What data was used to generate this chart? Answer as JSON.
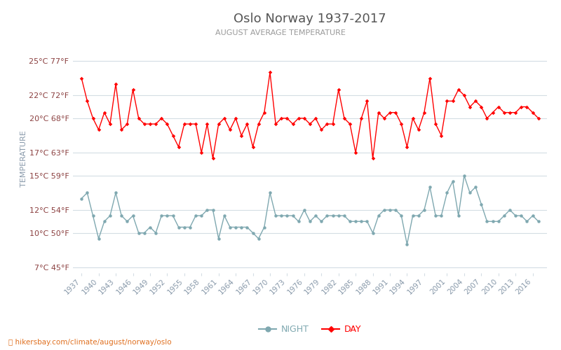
{
  "title": "Oslo Norway 1937-2017",
  "subtitle": "AUGUST AVERAGE TEMPERATURE",
  "ylabel": "TEMPERATURE",
  "xlabel_url": "ⓘ hikersbay.com/climate/august/norway/oslo",
  "legend_night": "NIGHT",
  "legend_day": "DAY",
  "years": [
    1937,
    1938,
    1939,
    1940,
    1941,
    1942,
    1943,
    1944,
    1945,
    1946,
    1947,
    1948,
    1949,
    1950,
    1951,
    1952,
    1953,
    1954,
    1955,
    1956,
    1957,
    1958,
    1959,
    1960,
    1961,
    1962,
    1963,
    1964,
    1965,
    1966,
    1967,
    1968,
    1969,
    1970,
    1971,
    1972,
    1973,
    1974,
    1975,
    1976,
    1977,
    1978,
    1979,
    1980,
    1981,
    1982,
    1983,
    1984,
    1985,
    1986,
    1987,
    1988,
    1989,
    1990,
    1991,
    1992,
    1993,
    1994,
    1995,
    1996,
    1997,
    1998,
    1999,
    2000,
    2001,
    2002,
    2003,
    2004,
    2005,
    2006,
    2007,
    2008,
    2009,
    2010,
    2011,
    2012,
    2013,
    2014,
    2015,
    2016,
    2017
  ],
  "day": [
    23.5,
    21.5,
    20.0,
    19.0,
    20.5,
    19.5,
    23.0,
    19.0,
    19.5,
    22.5,
    20.0,
    19.5,
    19.5,
    19.5,
    20.0,
    19.5,
    18.5,
    17.5,
    19.5,
    19.5,
    19.5,
    17.0,
    19.5,
    16.5,
    19.5,
    20.0,
    19.0,
    20.0,
    18.5,
    19.5,
    17.5,
    19.5,
    20.5,
    24.0,
    19.5,
    20.0,
    20.0,
    19.5,
    20.0,
    20.0,
    19.5,
    20.0,
    19.0,
    19.5,
    19.5,
    22.5,
    20.0,
    19.5,
    17.0,
    20.0,
    21.5,
    16.5,
    20.5,
    20.0,
    20.5,
    20.5,
    19.5,
    17.5,
    20.0,
    19.0,
    20.5,
    23.5,
    19.5,
    18.5,
    21.5,
    21.5,
    22.5,
    22.0,
    21.0,
    21.5,
    21.0,
    20.0,
    20.5,
    21.0,
    20.5,
    20.5,
    20.5,
    21.0,
    21.0,
    20.5,
    20.0
  ],
  "night": [
    13.0,
    13.5,
    11.5,
    9.5,
    11.0,
    11.5,
    13.5,
    11.5,
    11.0,
    11.5,
    10.0,
    10.0,
    10.5,
    10.0,
    11.5,
    11.5,
    11.5,
    10.5,
    10.5,
    10.5,
    11.5,
    11.5,
    12.0,
    12.0,
    9.5,
    11.5,
    10.5,
    10.5,
    10.5,
    10.5,
    10.0,
    9.5,
    10.5,
    13.5,
    11.5,
    11.5,
    11.5,
    11.5,
    11.0,
    12.0,
    11.0,
    11.5,
    11.0,
    11.5,
    11.5,
    11.5,
    11.5,
    11.0,
    11.0,
    11.0,
    11.0,
    10.0,
    11.5,
    12.0,
    12.0,
    12.0,
    11.5,
    9.0,
    11.5,
    11.5,
    12.0,
    14.0,
    11.5,
    11.5,
    13.5,
    14.5,
    11.5,
    15.0,
    13.5,
    14.0,
    12.5,
    11.0,
    11.0,
    11.0,
    11.5,
    12.0,
    11.5,
    11.5,
    11.0,
    11.5,
    11.0
  ],
  "yticks_c": [
    7,
    10,
    12,
    15,
    17,
    20,
    22,
    25
  ],
  "yticks_f": [
    45,
    50,
    54,
    59,
    63,
    68,
    72,
    77
  ],
  "ylim": [
    6.5,
    26.5
  ],
  "xlim": [
    1935.5,
    2018.5
  ],
  "xtick_years": [
    1937,
    1940,
    1943,
    1946,
    1949,
    1952,
    1955,
    1958,
    1961,
    1964,
    1967,
    1970,
    1973,
    1976,
    1979,
    1982,
    1985,
    1988,
    1991,
    1994,
    1997,
    2001,
    2004,
    2007,
    2010,
    2013,
    2016
  ],
  "day_color": "#ff0000",
  "night_color": "#7fa8b0",
  "grid_color": "#d4dde4",
  "title_color": "#555555",
  "subtitle_color": "#999999",
  "label_color": "#8b4040",
  "tick_color": "#8899aa",
  "url_color": "#e07020",
  "bg_color": "#ffffff",
  "figsize": [
    8.0,
    5.0
  ],
  "dpi": 100
}
